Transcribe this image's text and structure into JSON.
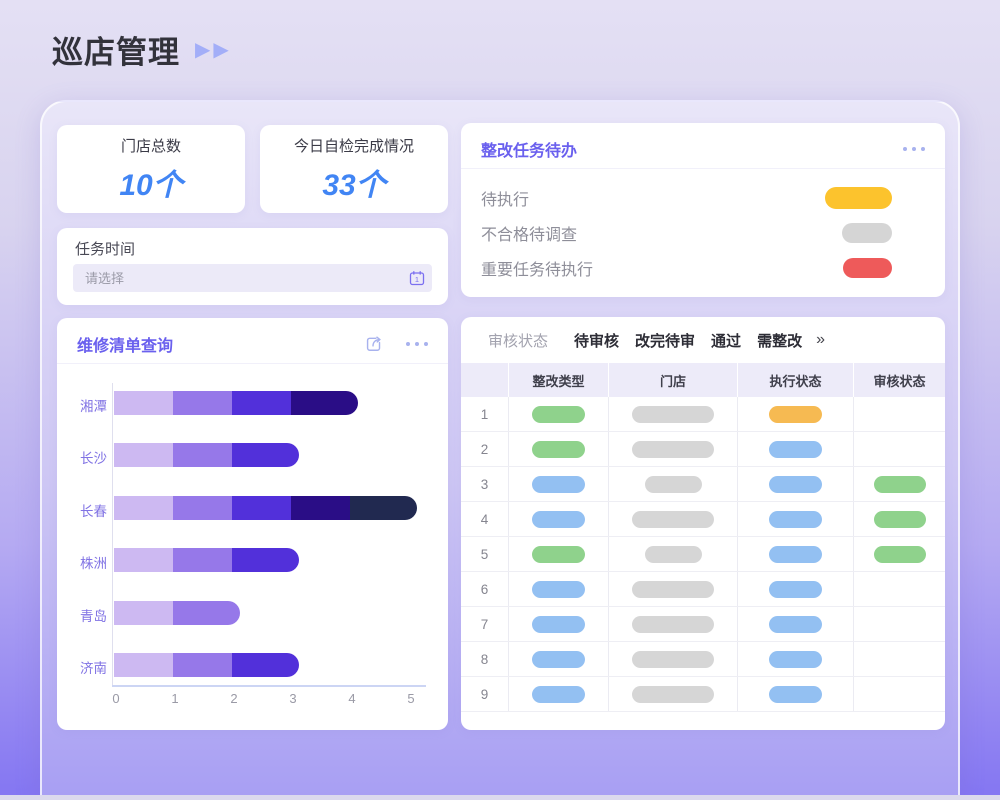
{
  "page": {
    "title": "巡店管理"
  },
  "stats": [
    {
      "label": "门店总数",
      "value": "10个"
    },
    {
      "label": "今日自检完成情况",
      "value": "33个"
    }
  ],
  "task_time": {
    "label": "任务时间",
    "placeholder": "请选择"
  },
  "repair_panel": {
    "title": "维修清单查询"
  },
  "chart_data": {
    "type": "bar",
    "orientation": "horizontal",
    "stacked": true,
    "title": "维修清单查询",
    "categories": [
      "湘潭",
      "长沙",
      "长春",
      "株洲",
      "青岛",
      "济南"
    ],
    "values": [
      [
        1,
        1,
        1,
        1
      ],
      [
        1,
        1,
        1
      ],
      [
        1,
        1,
        1,
        1,
        1
      ],
      [
        1,
        1,
        1
      ],
      [
        1,
        1
      ],
      [
        1,
        1,
        1
      ]
    ],
    "totals": [
      4,
      3,
      5,
      3,
      2,
      3
    ],
    "segment_colors": [
      "#cdb9f2",
      "#9678e9",
      "#5230da",
      "#2a0d86",
      "#212950"
    ],
    "x_ticks": [
      "0",
      "1",
      "2",
      "3",
      "4",
      "5"
    ],
    "xlim": [
      0,
      5
    ],
    "grid": false,
    "legend": false
  },
  "todo_panel": {
    "title": "整改任务待办",
    "items": [
      {
        "label": "待执行",
        "status_color": "#fcc32d",
        "pill_w": 67,
        "pill_h": 22
      },
      {
        "label": "不合格待调查",
        "status_color": "#d5d5d5",
        "pill_w": 50,
        "pill_h": 20
      },
      {
        "label": "重要任务待执行",
        "status_color": "#ee5a5a",
        "pill_w": 49,
        "pill_h": 20
      }
    ]
  },
  "table_panel": {
    "filter_label": "审核状态",
    "tabs": [
      "待审核",
      "改完待审",
      "通过",
      "需整改"
    ],
    "more_label": "»",
    "columns": [
      "",
      "整改类型",
      "门店",
      "执行状态",
      "审核状态"
    ],
    "pill_colors": {
      "green": "#8fd28c",
      "blue": "#93c0f2",
      "orange": "#f6ba52",
      "gray": "#d6d6d6"
    },
    "pill_widths": {
      "type": 53,
      "store_wide": 82,
      "store_narrow": 57,
      "exec": 53,
      "review": 52
    },
    "rows": [
      {
        "num": "1",
        "type": "green",
        "store": "wide",
        "exec": "orange",
        "review": null
      },
      {
        "num": "2",
        "type": "green",
        "store": "wide",
        "exec": "blue",
        "review": null
      },
      {
        "num": "3",
        "type": "blue",
        "store": "narrow",
        "exec": "blue",
        "review": "green"
      },
      {
        "num": "4",
        "type": "blue",
        "store": "wide",
        "exec": "blue",
        "review": "green"
      },
      {
        "num": "5",
        "type": "green",
        "store": "narrow",
        "exec": "blue",
        "review": "green"
      },
      {
        "num": "6",
        "type": "blue",
        "store": "wide",
        "exec": "blue",
        "review": null
      },
      {
        "num": "7",
        "type": "blue",
        "store": "wide",
        "exec": "blue",
        "review": null
      },
      {
        "num": "8",
        "type": "blue",
        "store": "wide",
        "exec": "blue",
        "review": null
      },
      {
        "num": "9",
        "type": "blue",
        "store": "wide",
        "exec": "blue",
        "review": null
      }
    ]
  },
  "colors": {
    "accent_purple": "#6a60ee",
    "stat_value_blue": "#4185f4",
    "icon_periwinkle": "#a8b2ee",
    "chart_label_purple": "#8173e4"
  }
}
